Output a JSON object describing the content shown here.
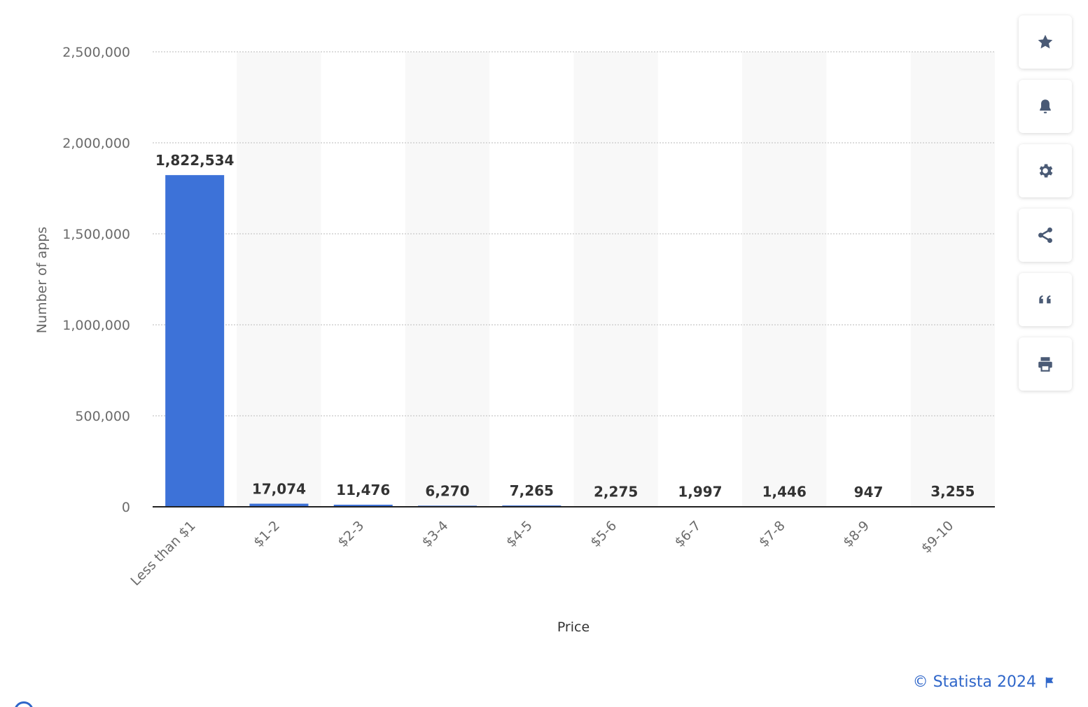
{
  "chart_data": {
    "type": "bar",
    "categories": [
      "Less than $1",
      "$1-2",
      "$2-3",
      "$3-4",
      "$4-5",
      "$5-6",
      "$6-7",
      "$7-8",
      "$8-9",
      "$9-10"
    ],
    "values": [
      1822534,
      17074,
      11476,
      6270,
      7265,
      2275,
      1997,
      1446,
      947,
      3255
    ],
    "data_labels": [
      "1,822,534",
      "17,074",
      "11,476",
      "6,270",
      "7,265",
      "2,275",
      "1,997",
      "1,446",
      "947",
      "3,255"
    ],
    "xlabel": "Price",
    "ylabel": "Number of apps",
    "ylim": [
      0,
      2500000
    ],
    "yticks": [
      0,
      500000,
      1000000,
      1500000,
      2000000,
      2500000
    ],
    "ytick_labels": [
      "0",
      "500,000",
      "1,000,000",
      "1,500,000",
      "2,000,000",
      "2,500,000"
    ],
    "grid": true,
    "bar_color": "#3d72d8"
  },
  "toolbar": {
    "buttons": [
      {
        "name": "favorite",
        "icon": "star-icon"
      },
      {
        "name": "notification",
        "icon": "bell-icon"
      },
      {
        "name": "settings",
        "icon": "gear-icon"
      },
      {
        "name": "share",
        "icon": "share-icon"
      },
      {
        "name": "cite",
        "icon": "quote-icon"
      },
      {
        "name": "print",
        "icon": "print-icon"
      }
    ],
    "icon_color": "#4a5a75"
  },
  "credit": {
    "text": "© Statista 2024",
    "icon": "flag-icon",
    "color": "#2f66c9"
  }
}
